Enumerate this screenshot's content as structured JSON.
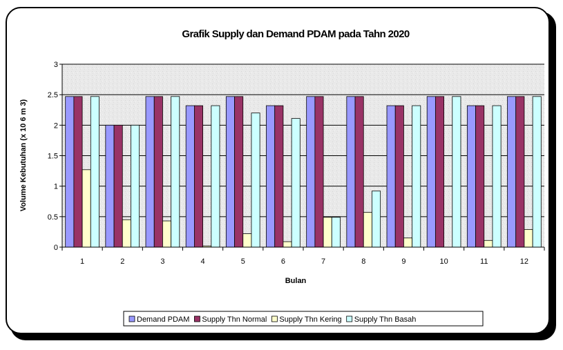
{
  "chart_data": {
    "type": "bar",
    "title": "Grafik Supply dan Demand PDAM pada Tahn 2020",
    "xlabel": "Bulan",
    "ylabel": "Volume Kebutuhan (x 10   6 m 3)",
    "ylim": [
      0,
      3
    ],
    "yticks": [
      "0",
      "0.5",
      "1",
      "1.5",
      "2",
      "2.5",
      "3"
    ],
    "categories": [
      "1",
      "2",
      "3",
      "4",
      "5",
      "6",
      "7",
      "8",
      "9",
      "10",
      "11",
      "12"
    ],
    "grid": true,
    "legend_position": "bottom",
    "series": [
      {
        "name": "Demand PDAM",
        "color": "#9999ff",
        "values": [
          2.47,
          2.0,
          2.47,
          2.32,
          2.47,
          2.32,
          2.47,
          2.47,
          2.32,
          2.47,
          2.32,
          2.47
        ]
      },
      {
        "name": "Supply Thn Normal",
        "color": "#993366",
        "values": [
          2.47,
          2.0,
          2.47,
          2.32,
          2.47,
          2.32,
          2.47,
          2.47,
          2.32,
          2.47,
          2.32,
          2.47
        ]
      },
      {
        "name": "Supply Thn Kering",
        "color": "#ffffcc",
        "values": [
          1.27,
          0.45,
          0.43,
          0.02,
          0.22,
          0.09,
          0.49,
          0.57,
          0.15,
          0.0,
          0.11,
          0.29
        ]
      },
      {
        "name": "Supply Thn Basah",
        "color": "#ccffff",
        "values": [
          2.47,
          2.0,
          2.47,
          2.32,
          2.2,
          2.11,
          0.49,
          0.92,
          2.32,
          2.47,
          2.32,
          2.47
        ]
      }
    ]
  }
}
